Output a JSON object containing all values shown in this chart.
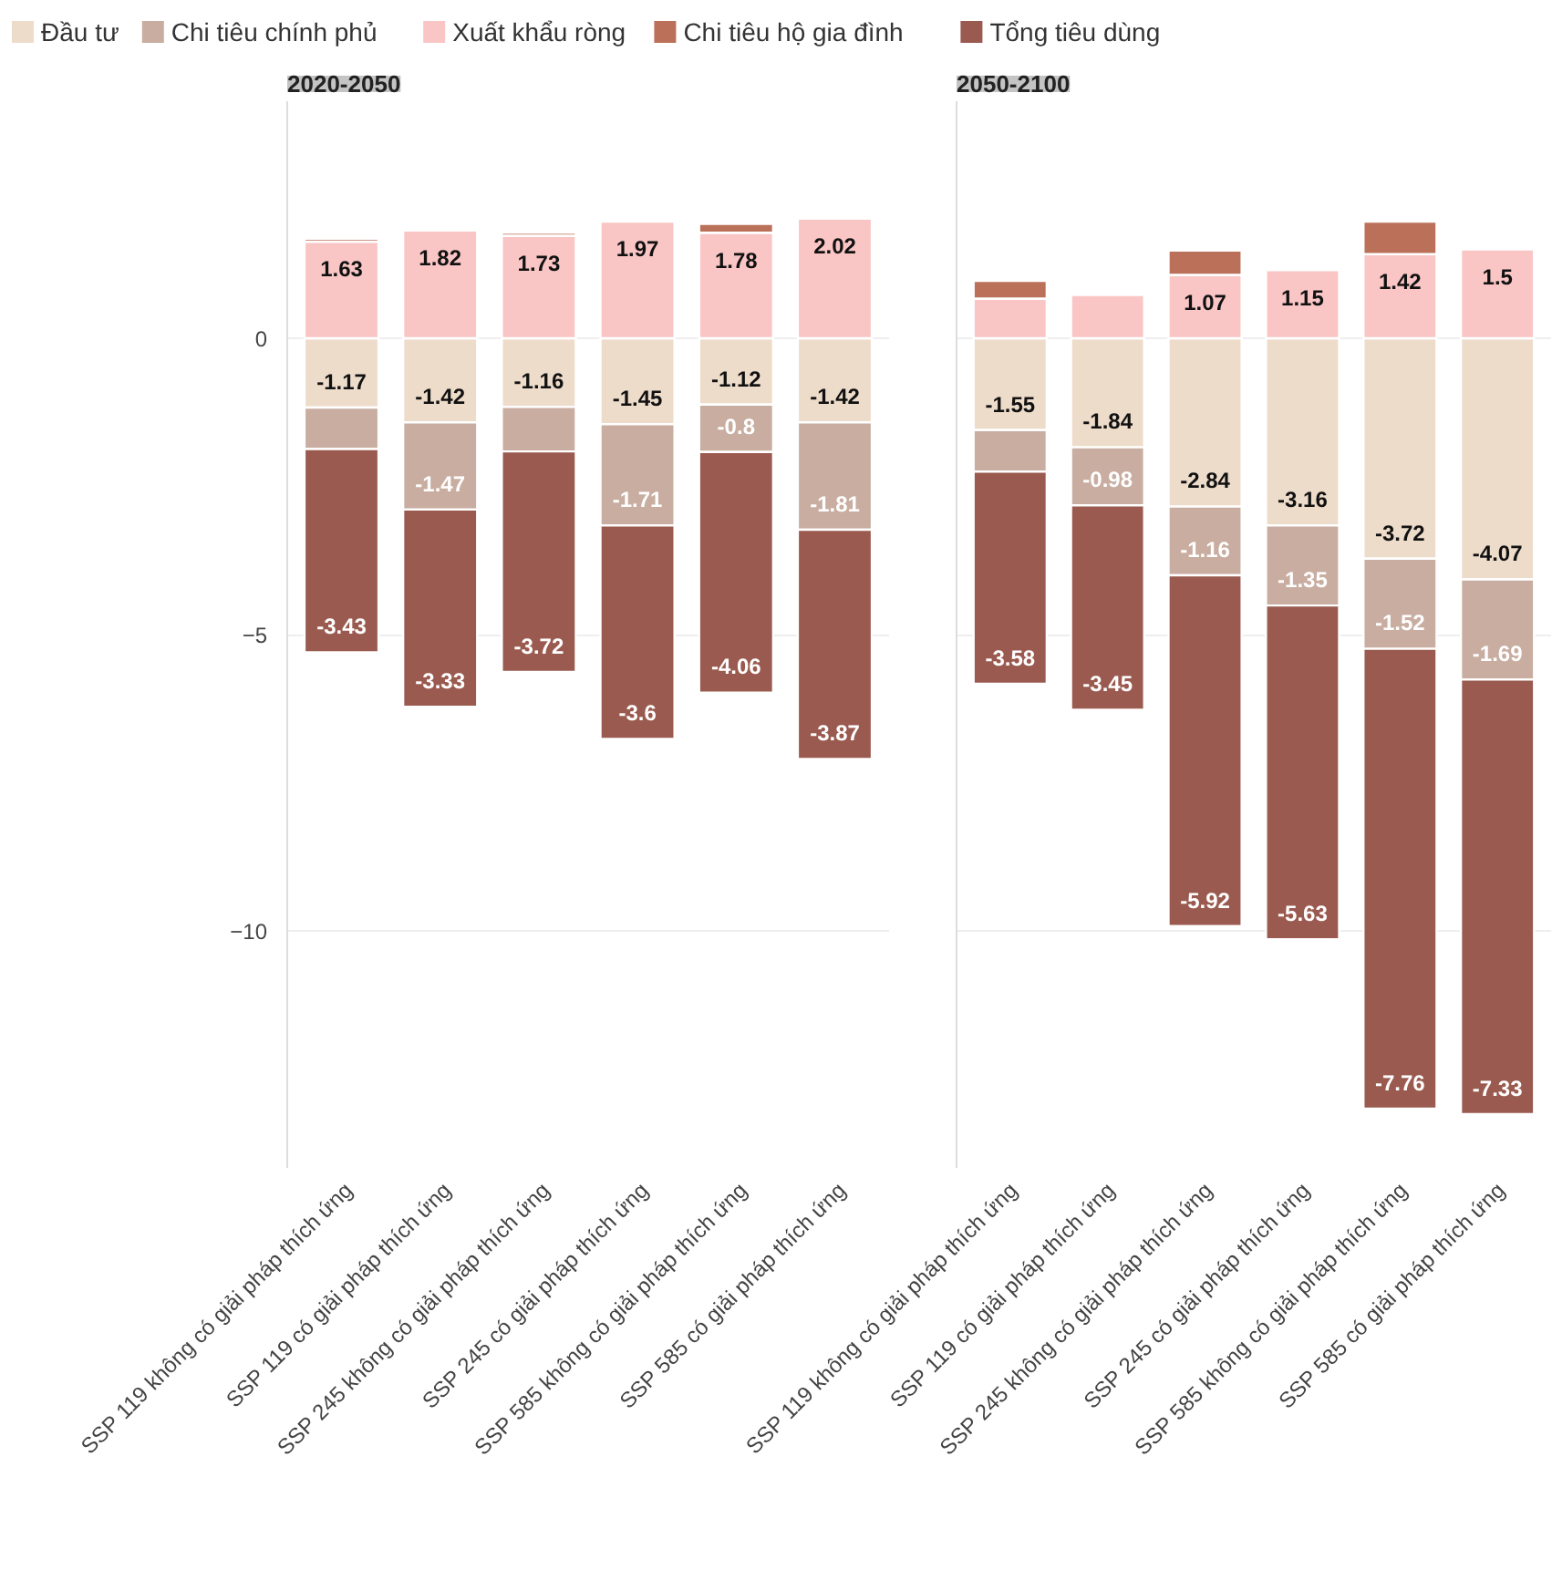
{
  "chart_data": [
    {
      "type": "bar",
      "title": "2020-2050",
      "stacked": true,
      "legend": "top",
      "grid": "y",
      "data_labels": false,
      "tick_labels": true,
      "categories": [
        "SSP 119 không có giải pháp thích ứng",
        "SSP 119 có giải pháp thích ứng",
        "SSP 245 không có giải pháp thích ứng",
        "SSP 245 có giải pháp thích ứng",
        "SSP 585 không có giải pháp thích ứng",
        "SSP 585 có giải pháp thích ứng"
      ],
      "ylim": [
        -14,
        4
      ],
      "yticks": [
        0,
        -5,
        -10
      ],
      "series": [
        {
          "name": "Đầu tư",
          "color": "#eedccb",
          "values": [
            -1.17,
            -1.42,
            -1.16,
            -1.45,
            -1.12,
            -1.42
          ],
          "value_labels": [
            "-1.17",
            "-1.42",
            "-1.16",
            "-1.45",
            "-1.12",
            "-1.42"
          ]
        },
        {
          "name": "Chi tiêu chính phủ",
          "color": "#c8ada0",
          "values": [
            -0.7,
            -1.47,
            -0.75,
            -1.71,
            -0.8,
            -1.81
          ],
          "value_labels": [
            null,
            "-1.47",
            null,
            "-1.71",
            "-0.8",
            "-1.81"
          ]
        },
        {
          "name": "Xuất khẩu ròng",
          "color": "#f9c6c5",
          "values": [
            1.63,
            1.82,
            1.73,
            1.97,
            1.78,
            2.02
          ],
          "value_labels": [
            "1.63",
            "1.82",
            "1.73",
            "1.97",
            "1.78",
            "2.02"
          ]
        },
        {
          "name": "Chi tiêu hộ gia đình",
          "color": "#bb7159",
          "values": [
            0.05,
            null,
            0.05,
            null,
            0.15,
            null
          ],
          "value_labels": [
            null,
            null,
            null,
            null,
            null,
            null
          ]
        },
        {
          "name": "Tổng tiêu dùng",
          "color": "#9a5a4f",
          "values": [
            -3.43,
            -3.33,
            -3.72,
            -3.6,
            -4.06,
            -3.87
          ],
          "value_labels": [
            "-3.43",
            "-3.33",
            "-3.72",
            "-3.6",
            "-4.06",
            "-3.87"
          ]
        }
      ]
    },
    {
      "type": "bar",
      "title": "2050-2100",
      "stacked": true,
      "grid": "y",
      "tick_labels": "x",
      "categories": [
        "SSP 119 không có giải pháp thích ứng",
        "SSP 119 có giải pháp thích ứng",
        "SSP 245 không có giải pháp thích ứng",
        "SSP 245 có giải pháp thích ứng",
        "SSP 585 không có giải pháp thích ứng",
        "SSP 585 có giải pháp thích ứng"
      ],
      "ylim": [
        -14,
        4
      ],
      "yticks": [
        0,
        -5,
        -10
      ],
      "series": [
        {
          "color": "#eedccb",
          "values": [
            -1.55,
            -1.84,
            -2.84,
            -3.16,
            -3.72,
            -4.07
          ],
          "value_labels": [
            "-1.55",
            "-1.84",
            "-2.84",
            "-3.16",
            "-3.72",
            "-4.07"
          ]
        },
        {
          "color": "#c8ada0",
          "values": [
            -0.7,
            -0.98,
            -1.16,
            -1.35,
            -1.52,
            -1.69
          ],
          "value_labels": [
            null,
            "-0.98",
            "-1.16",
            "-1.35",
            "-1.52",
            "-1.69"
          ]
        },
        {
          "color": "#f9c6c5",
          "values": [
            0.67,
            0.73,
            1.07,
            1.15,
            1.42,
            1.5
          ],
          "value_labels": [
            null,
            null,
            "1.07",
            "1.15",
            "1.42",
            "1.5"
          ]
        },
        {
          "color": "#bb7159",
          "values": [
            0.3,
            null,
            0.41,
            null,
            0.55,
            null
          ],
          "value_labels": [
            null,
            null,
            null,
            null,
            null,
            null
          ]
        },
        {
          "color": "#9a5a4f",
          "values": [
            -3.58,
            -3.45,
            -5.92,
            -5.63,
            -7.76,
            -7.33
          ],
          "value_labels": [
            "-3.58",
            "-3.45",
            "-5.92",
            "-5.63",
            "-7.76",
            "-7.33"
          ]
        }
      ]
    }
  ]
}
